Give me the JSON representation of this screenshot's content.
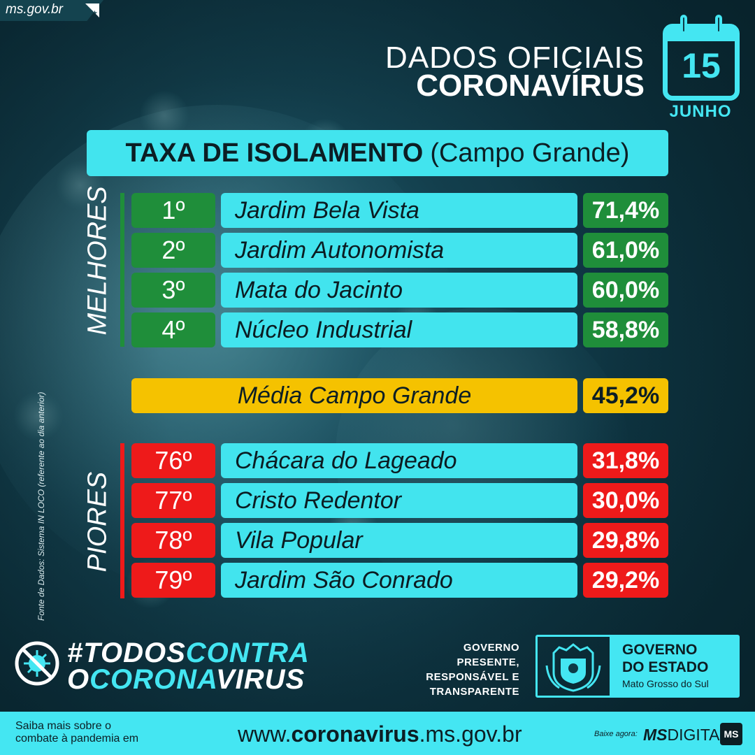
{
  "site": {
    "label": "ms.gov.br"
  },
  "header": {
    "line1": "DADOS OFICIAIS",
    "line2": "CORONAVÍRUS"
  },
  "calendar": {
    "day": "15",
    "month": "JUNHO"
  },
  "title": {
    "main": "TAXA DE ISOLAMENTO",
    "sub": "(Campo Grande)"
  },
  "best": {
    "label": "MELHORES",
    "color": "#1f8e3a",
    "rows": [
      {
        "rank": "1º",
        "name": "Jardim Bela Vista",
        "value": "71,4%"
      },
      {
        "rank": "2º",
        "name": "Jardim Autonomista",
        "value": "61,0%"
      },
      {
        "rank": "3º",
        "name": "Mata do Jacinto",
        "value": "60,0%"
      },
      {
        "rank": "4º",
        "name": "Núcleo Industrial",
        "value": "58,8%"
      }
    ]
  },
  "average": {
    "name": "Média Campo Grande",
    "value": "45,2%",
    "color": "#f5c200"
  },
  "worst": {
    "label": "PIORES",
    "color": "#ee1a1a",
    "rows": [
      {
        "rank": "76º",
        "name": "Chácara do Lageado",
        "value": "31,8%"
      },
      {
        "rank": "77º",
        "name": "Cristo Redentor",
        "value": "30,0%"
      },
      {
        "rank": "78º",
        "name": "Vila Popular",
        "value": "29,8%"
      },
      {
        "rank": "79º",
        "name": "Jardim São Conrado",
        "value": "29,2%"
      }
    ]
  },
  "source": "Fonte de Dados: Sistema IN LOCO (referente ao dia anterior)",
  "campaign": {
    "part1": "#TODOS",
    "part2": "CONTRA",
    "part3": "O",
    "part4": "CORONA",
    "part5": "VIRUS"
  },
  "government": {
    "slogan": [
      "GOVERNO",
      "PRESENTE,",
      "RESPONSÁVEL E",
      "TRANSPARENTE"
    ],
    "title1": "GOVERNO",
    "title2": "DO ESTADO",
    "state": "Mato Grosso do Sul"
  },
  "footer": {
    "left_line1": "Saiba mais sobre o",
    "left_line2": "combate à pandemia em",
    "url_prefix": "www.",
    "url_bold": "coronavirus",
    "url_suffix": ".ms.gov.br",
    "download_label": "Baixe agora:",
    "app_bold": "MS",
    "app_rest": "DIGITAL",
    "app_logo": "MS"
  },
  "colors": {
    "accent": "#44e6f2",
    "background": "#0d3a47"
  }
}
